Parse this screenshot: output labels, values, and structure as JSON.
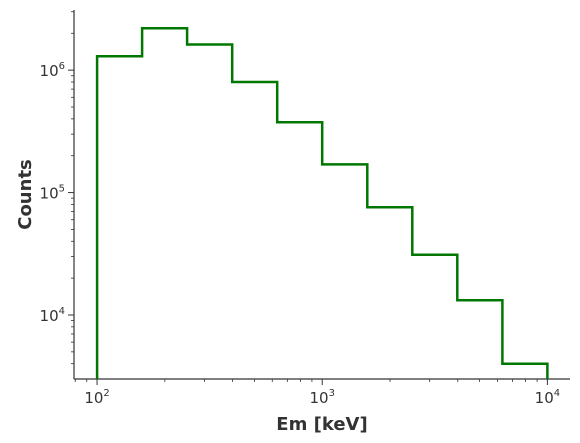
{
  "chart_data": {
    "type": "line",
    "style": "step-histogram",
    "title": "",
    "xlabel": "Em [keV]",
    "ylabel": "Counts",
    "xscale": "log",
    "yscale": "log",
    "xlim": [
      79,
      12600
    ],
    "ylim": [
      3000,
      3100000
    ],
    "grid": false,
    "line_color": "#007700",
    "x_ticks": [
      {
        "base": "10",
        "exp": "2",
        "value": 100
      },
      {
        "base": "10",
        "exp": "3",
        "value": 1000
      },
      {
        "base": "10",
        "exp": "4",
        "value": 10000
      }
    ],
    "y_ticks": [
      {
        "base": "10",
        "exp": "4",
        "value": 10000
      },
      {
        "base": "10",
        "exp": "5",
        "value": 100000
      },
      {
        "base": "10",
        "exp": "6",
        "value": 1000000
      }
    ],
    "bin_edges": [
      100,
      158.5,
      251.2,
      398.1,
      631,
      1000,
      1585,
      2512,
      3981,
      6310,
      10000
    ],
    "counts": [
      1300000,
      2200000,
      1620000,
      800000,
      375000,
      170000,
      76000,
      31000,
      13200,
      4000
    ]
  }
}
